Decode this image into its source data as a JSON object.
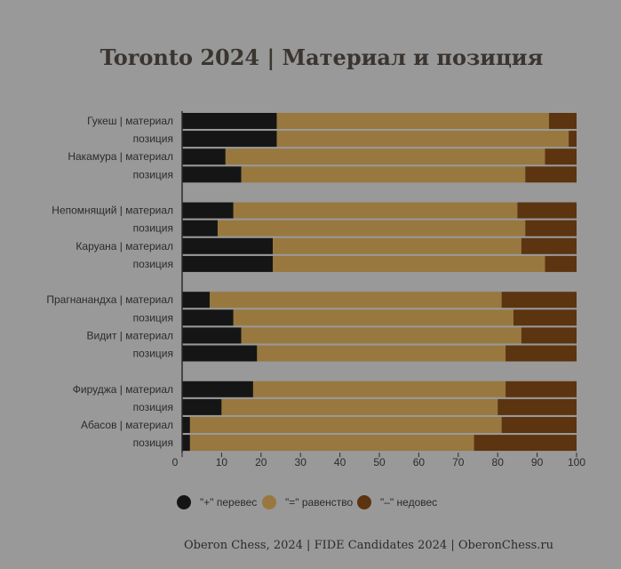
{
  "chart_data": {
    "type": "bar",
    "orientation": "horizontal",
    "stacked": true,
    "title": "Toronto 2024  | Материал и позиция",
    "categories": [
      "Гукеш | материал",
      "позиция",
      "Накамура | материал",
      "позиция",
      "Непомнящий | материал",
      "позиция",
      "Каруана | материал",
      "позиция",
      "Прагнанандха | материал",
      "позиция",
      "Видит | материал",
      "позиция",
      "Фируджа | материал",
      "позиция",
      "Абасов | материал",
      "позиция"
    ],
    "series": [
      {
        "name": "\"+\" перевес",
        "color": "#151515",
        "values": [
          24,
          24,
          11,
          15,
          13,
          9,
          23,
          23,
          7,
          13,
          15,
          19,
          18,
          10,
          2,
          2
        ]
      },
      {
        "name": "\"=\" равенство",
        "color": "#98783e",
        "values": [
          69,
          74,
          81,
          72,
          72,
          78,
          63,
          69,
          74,
          71,
          71,
          63,
          64,
          70,
          79,
          72
        ]
      },
      {
        "name": "\"–\" недовес",
        "color": "#5c3410",
        "values": [
          7,
          2,
          8,
          13,
          15,
          13,
          14,
          8,
          19,
          16,
          14,
          18,
          18,
          20,
          19,
          26
        ]
      }
    ],
    "xlim": [
      0,
      100
    ],
    "xticks": [
      0,
      10,
      20,
      30,
      40,
      50,
      60,
      70,
      80,
      90,
      100
    ],
    "legend_position": "bottom",
    "footer": "Oberon Chess, 2024   |   FIDE Candidates 2024   |   OberonChess.ru"
  }
}
